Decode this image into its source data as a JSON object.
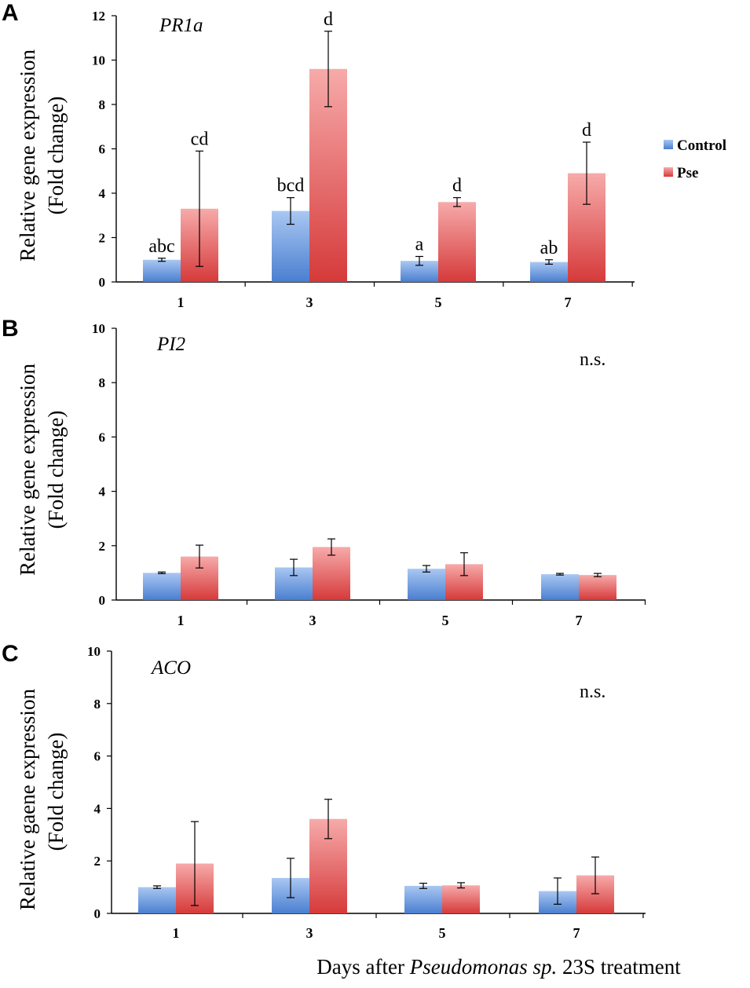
{
  "legend": [
    {
      "name": "Control",
      "color": "#5b8fd9"
    },
    {
      "name": "Pse",
      "color": "#e26a6a"
    }
  ],
  "x_caption": {
    "prefix": "Days after ",
    "italic": "Pseudomonas sp.",
    "suffix": " 23S treatment"
  },
  "chart_data": [
    {
      "type": "bar",
      "panel": "A",
      "title": "PR1a",
      "ylabel_line1": "Relative gene expression",
      "ylabel_line2": "(Fold change)",
      "categories": [
        "1",
        "3",
        "5",
        "7"
      ],
      "ylim": [
        0,
        12
      ],
      "yticks": [
        0,
        2,
        4,
        6,
        8,
        10,
        12
      ],
      "annotation": "",
      "series": [
        {
          "name": "Control",
          "values": [
            1.0,
            3.2,
            0.95,
            0.9
          ],
          "errors": [
            0.07,
            0.6,
            0.2,
            0.1
          ],
          "labels": [
            "abc",
            "bcd",
            "a",
            "ab"
          ]
        },
        {
          "name": "Pse",
          "values": [
            3.3,
            9.6,
            3.6,
            4.9
          ],
          "errors": [
            2.6,
            1.7,
            0.2,
            1.4
          ],
          "labels": [
            "cd",
            "d",
            "d",
            "d"
          ]
        }
      ]
    },
    {
      "type": "bar",
      "panel": "B",
      "title": "PI2",
      "ylabel_line1": "Relative gene expression",
      "ylabel_line2": "(Fold change)",
      "categories": [
        "1",
        "3",
        "5",
        "7"
      ],
      "ylim": [
        0,
        10
      ],
      "yticks": [
        0,
        2,
        4,
        6,
        8,
        10
      ],
      "annotation": "n.s.",
      "series": [
        {
          "name": "Control",
          "values": [
            1.0,
            1.2,
            1.15,
            0.95
          ],
          "errors": [
            0.03,
            0.3,
            0.12,
            0.03
          ],
          "labels": [
            "",
            "",
            "",
            ""
          ]
        },
        {
          "name": "Pse",
          "values": [
            1.6,
            1.95,
            1.32,
            0.92
          ],
          "errors": [
            0.42,
            0.3,
            0.42,
            0.06
          ],
          "labels": [
            "",
            "",
            "",
            ""
          ]
        }
      ]
    },
    {
      "type": "bar",
      "panel": "C",
      "title": "ACO",
      "ylabel_line1": "Relative gaene expression",
      "ylabel_line2": "(Fold change)",
      "categories": [
        "1",
        "3",
        "5",
        "7"
      ],
      "ylim": [
        0,
        10
      ],
      "yticks": [
        0,
        2,
        4,
        6,
        8,
        10
      ],
      "annotation": "n.s.",
      "series": [
        {
          "name": "Control",
          "values": [
            1.0,
            1.35,
            1.05,
            0.85
          ],
          "errors": [
            0.05,
            0.75,
            0.1,
            0.5
          ],
          "labels": [
            "",
            "",
            "",
            ""
          ]
        },
        {
          "name": "Pse",
          "values": [
            1.9,
            3.6,
            1.07,
            1.45
          ],
          "errors": [
            1.6,
            0.75,
            0.1,
            0.7
          ],
          "labels": [
            "",
            "",
            "",
            ""
          ]
        }
      ]
    }
  ]
}
